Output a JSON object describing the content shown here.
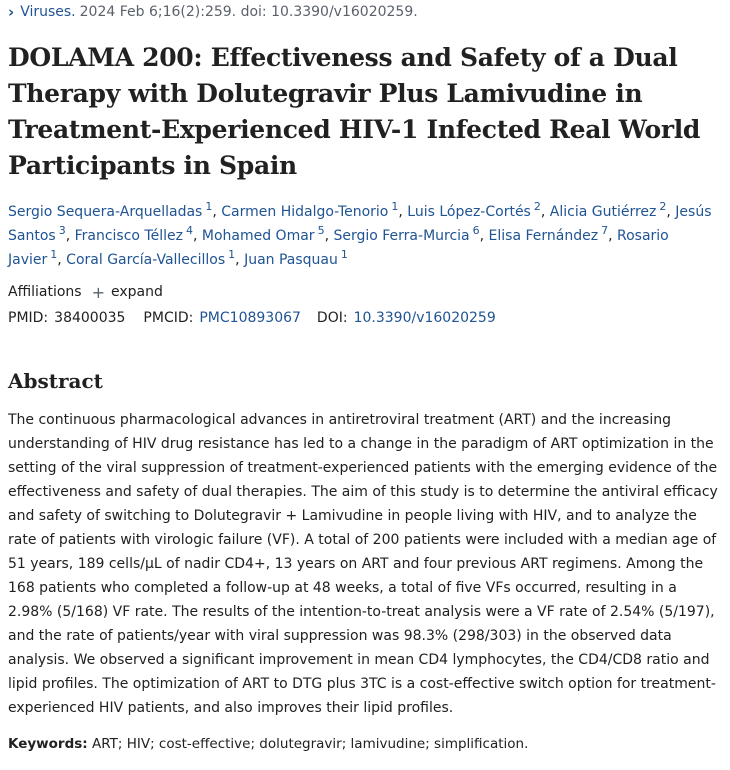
{
  "citation": {
    "journal": "Viruses.",
    "detail": "2024 Feb 6;16(2):259. doi: 10.3390/v16020259."
  },
  "title": "DOLAMA 200: Effectiveness and Safety of a Dual Therapy with Dolutegravir Plus Lamivudine in Treatment-Experienced HIV-1 Infected Real World Participants in Spain",
  "authors": [
    {
      "name": "Sergio Sequera-Arquelladas",
      "aff": "1"
    },
    {
      "name": "Carmen Hidalgo-Tenorio",
      "aff": "1"
    },
    {
      "name": "Luis López-Cortés",
      "aff": "2"
    },
    {
      "name": "Alicia Gutiérrez",
      "aff": "2"
    },
    {
      "name": "Jesús Santos",
      "aff": "3"
    },
    {
      "name": "Francisco Téllez",
      "aff": "4"
    },
    {
      "name": "Mohamed Omar",
      "aff": "5"
    },
    {
      "name": "Sergio Ferra-Murcia",
      "aff": "6"
    },
    {
      "name": "Elisa Fernández",
      "aff": "7"
    },
    {
      "name": "Rosario Javier",
      "aff": "1"
    },
    {
      "name": "Coral García-Vallecillos",
      "aff": "1"
    },
    {
      "name": "Juan Pasquau",
      "aff": "1"
    }
  ],
  "affiliations": {
    "label": "Affiliations",
    "expand": "expand"
  },
  "ids": {
    "pmid_label": "PMID:",
    "pmid": "38400035",
    "pmcid_label": "PMCID:",
    "pmcid": "PMC10893067",
    "doi_label": "DOI:",
    "doi": "10.3390/v16020259"
  },
  "abstract": {
    "heading": "Abstract",
    "text": "The continuous pharmacological advances in antiretroviral treatment (ART) and the increasing understanding of HIV drug resistance has led to a change in the paradigm of ART optimization in the setting of the viral suppression of treatment-experienced patients with the emerging evidence of the effectiveness and safety of dual therapies. The aim of this study is to determine the antiviral efficacy and safety of switching to Dolutegravir + Lamivudine in people living with HIV, and to analyze the rate of patients with virologic failure (VF). A total of 200 patients were included with a median age of 51 years, 189 cells/µL of nadir CD4+, 13 years on ART and four previous ART regimens. Among the 168 patients who completed a follow-up at 48 weeks, a total of five VFs occurred, resulting in a 2.98% (5/168) VF rate. The results of the intention-to-treat analysis were a VF rate of 2.54% (5/197), and the rate of patients/year with viral suppression was 98.3% (298/303) in the observed data analysis. We observed a significant improvement in mean CD4 lymphocytes, the CD4/CD8 ratio and lipid profiles. The optimization of ART to DTG plus 3TC is a cost-effective switch option for treatment-experienced HIV patients, and also improves their lipid profiles."
  },
  "keywords": {
    "label": "Keywords:",
    "text": "ART; HIV; cost-effective; dolutegravir; lamivudine; simplification."
  },
  "colors": {
    "link": "#205493",
    "text": "#212121",
    "muted": "#5b616b"
  },
  "icons": {
    "citation": "chevron-right-icon",
    "expand": "plus-icon"
  }
}
